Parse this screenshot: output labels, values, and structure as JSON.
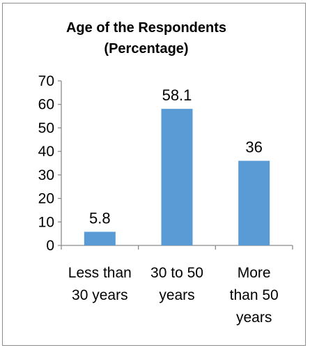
{
  "chart_data": {
    "type": "bar",
    "title_lines": [
      "Age of the Respondents",
      "(Percentage)"
    ],
    "categories": [
      [
        "Less than",
        "30 years"
      ],
      [
        "30 to 50",
        "years"
      ],
      [
        "More",
        "than 50",
        "years"
      ]
    ],
    "values": [
      5.8,
      58.1,
      36
    ],
    "data_labels": [
      "5.8",
      "58.1",
      "36"
    ],
    "ylim": [
      0,
      70
    ],
    "yticks": [
      0,
      10,
      20,
      30,
      40,
      50,
      60,
      70
    ],
    "grid": false,
    "legend": "none",
    "bar_color": "#5b9bd5",
    "axis_color": "#8c8c8c"
  }
}
